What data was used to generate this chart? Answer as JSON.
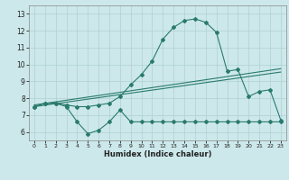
{
  "title": "",
  "xlabel": "Humidex (Indice chaleur)",
  "x_values": [
    0,
    1,
    2,
    3,
    4,
    5,
    6,
    7,
    8,
    9,
    10,
    11,
    12,
    13,
    14,
    15,
    16,
    17,
    18,
    19,
    20,
    21,
    22,
    23
  ],
  "line_main": [
    7.5,
    7.7,
    7.7,
    7.6,
    7.5,
    7.5,
    7.6,
    7.7,
    8.1,
    8.8,
    9.4,
    10.2,
    11.5,
    12.2,
    12.6,
    12.7,
    12.5,
    11.9,
    9.6,
    9.7,
    8.1,
    8.4,
    8.5,
    6.7
  ],
  "line_low": [
    7.5,
    7.7,
    7.7,
    7.5,
    6.6,
    5.9,
    6.1,
    6.6,
    7.3,
    6.6,
    6.6,
    6.6,
    6.6,
    6.6,
    6.6,
    6.6,
    6.6,
    6.6,
    6.6,
    6.6,
    6.6,
    6.6,
    6.6,
    6.6
  ],
  "trend1_x": [
    0,
    23
  ],
  "trend1_y": [
    7.6,
    9.75
  ],
  "trend2_x": [
    0,
    23
  ],
  "trend2_y": [
    7.5,
    9.55
  ],
  "ylim": [
    5.5,
    13.5
  ],
  "xlim": [
    -0.5,
    23.5
  ],
  "yticks": [
    6,
    7,
    8,
    9,
    10,
    11,
    12,
    13
  ],
  "xticks": [
    0,
    1,
    2,
    3,
    4,
    5,
    6,
    7,
    8,
    9,
    10,
    11,
    12,
    13,
    14,
    15,
    16,
    17,
    18,
    19,
    20,
    21,
    22,
    23
  ],
  "line_color": "#2a7a6e",
  "bg_color": "#cce8ea",
  "grid_color": "#b0d0d4"
}
